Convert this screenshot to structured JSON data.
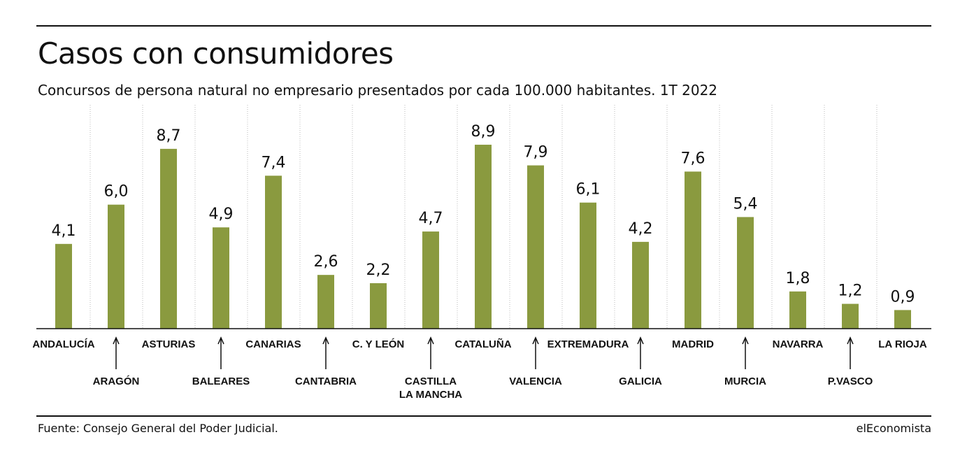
{
  "header": {
    "title": "Casos con consumidores",
    "subtitle": "Concursos de persona natural no empresario presentados por cada 100.000 habitantes. 1T 2022"
  },
  "footer": {
    "source": "Fuente: Consejo General del Poder Judicial.",
    "brand": "elEconomista"
  },
  "colors": {
    "bar": "#8a9a3f",
    "grid": "#bbbbbb",
    "text": "#111111"
  },
  "chart_data": {
    "type": "bar",
    "categories": [
      "ANDALUCÍA",
      "ARAGÓN",
      "ASTURIAS",
      "BALEARES",
      "CANARIAS",
      "CANTABRIA",
      "C. Y LEÓN",
      "CASTILLA\nLA MANCHA",
      "CATALUÑA",
      "VALENCIA",
      "EXTREMADURA",
      "GALICIA",
      "MADRID",
      "MURCIA",
      "NAVARRA",
      "P.VASCO",
      "LA RIOJA"
    ],
    "values": [
      4.1,
      6.0,
      8.7,
      4.9,
      7.4,
      2.6,
      2.2,
      4.7,
      8.9,
      7.9,
      6.1,
      4.2,
      7.6,
      5.4,
      1.8,
      1.2,
      0.9
    ],
    "value_labels": [
      "4,1",
      "6,0",
      "8,7",
      "4,9",
      "7,4",
      "2,6",
      "2,2",
      "4,7",
      "8,9",
      "7,9",
      "6,1",
      "4,2",
      "7,6",
      "5,4",
      "1,8",
      "1,2",
      "0,9"
    ],
    "ylim": [
      0,
      9
    ],
    "grid": "vertical-dotted",
    "legend": "none"
  }
}
